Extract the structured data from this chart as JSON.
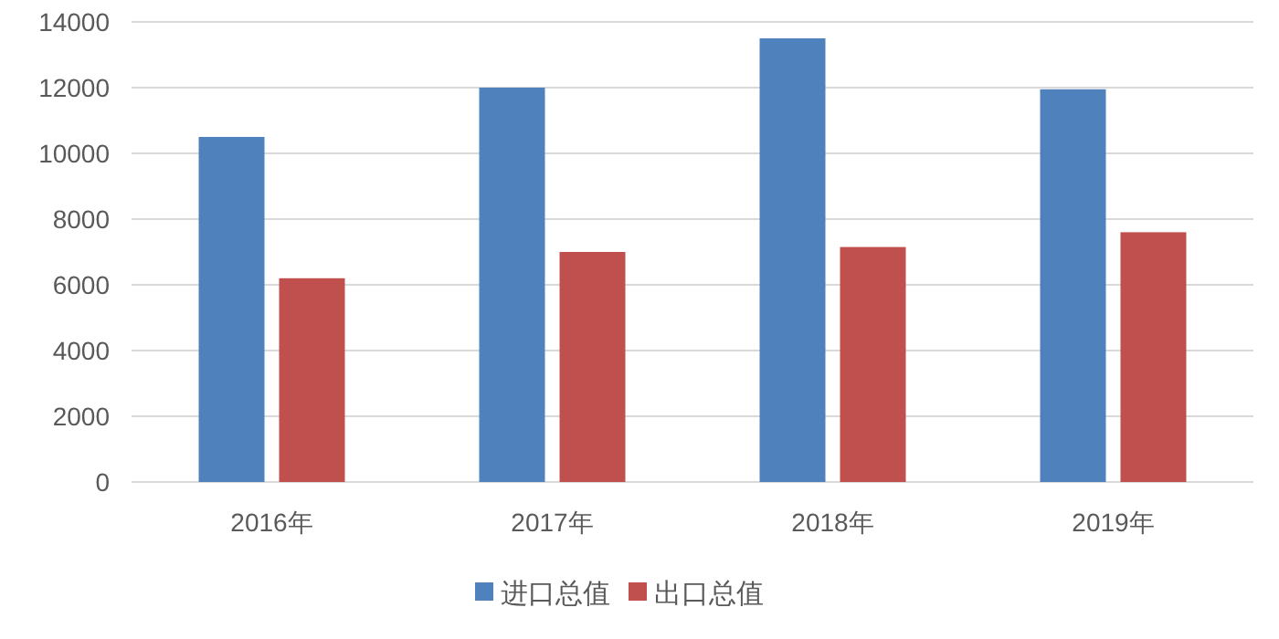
{
  "chart_data": {
    "type": "bar",
    "categories": [
      "2016年",
      "2017年",
      "2018年",
      "2019年"
    ],
    "series": [
      {
        "name": "进口总值",
        "color": "#4f81bd",
        "values": [
          10500,
          12000,
          13500,
          11950
        ]
      },
      {
        "name": "出口总值",
        "color": "#c0504d",
        "values": [
          6200,
          7000,
          7150,
          7600
        ]
      }
    ],
    "ylim": [
      0,
      14000
    ],
    "yticks": [
      0,
      2000,
      4000,
      6000,
      8000,
      10000,
      12000,
      14000
    ],
    "grid": "y",
    "legend": "bottom"
  }
}
